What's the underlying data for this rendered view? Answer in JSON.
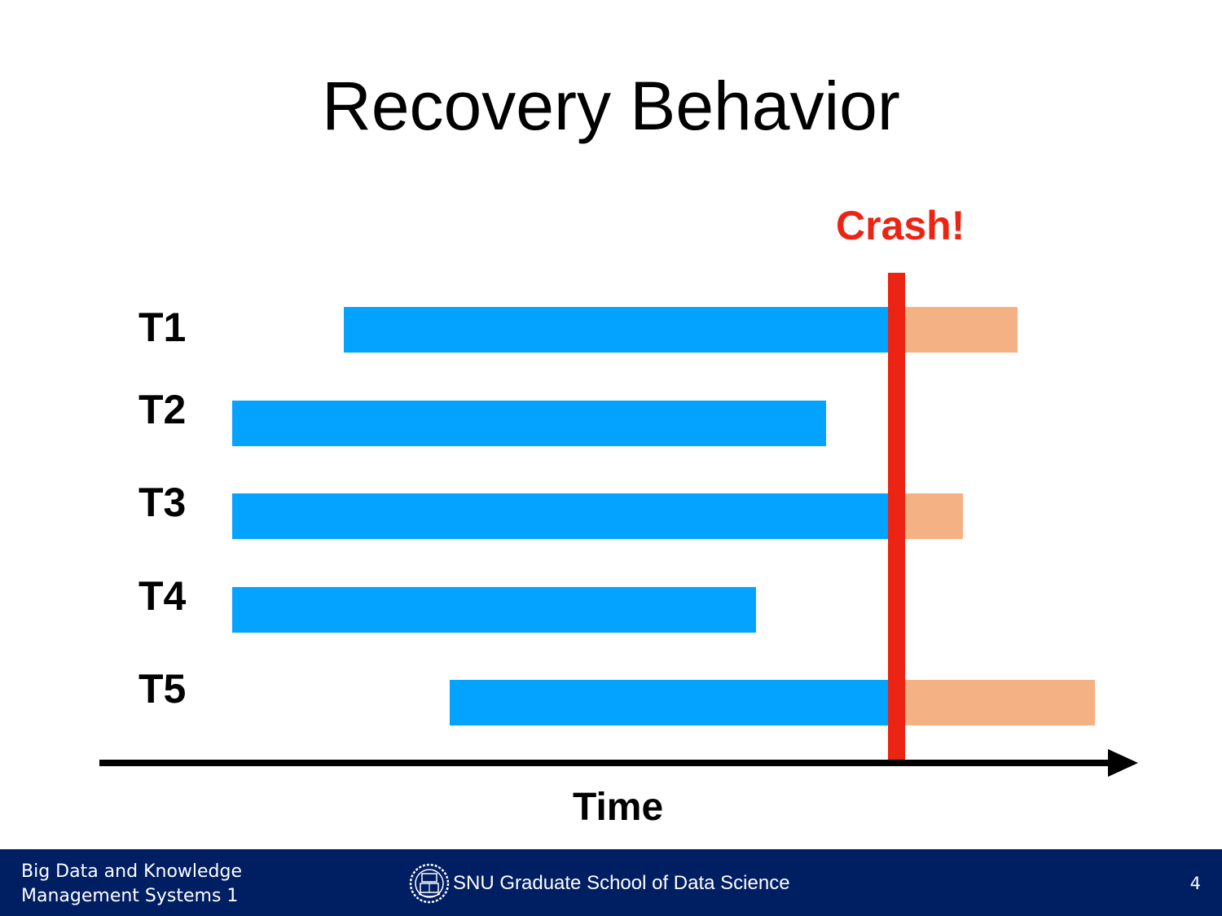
{
  "slide": {
    "title": "Recovery Behavior"
  },
  "diagram": {
    "crash_label": "Crash!",
    "axis_label": "Time",
    "crash_time": 10.9,
    "time_range": [
      1.22,
      13.97
    ],
    "colors": {
      "before_crash": "#03a3ff",
      "after_crash": "#f4b184",
      "crash": "#ec2413",
      "footer": "#001e62"
    },
    "transactions": [
      {
        "label": "T1",
        "start": 4.22,
        "end": 12.49
      },
      {
        "label": "T2",
        "start": 2.85,
        "end": 10.14
      },
      {
        "label": "T3",
        "start": 2.85,
        "end": 11.82
      },
      {
        "label": "T4",
        "start": 2.85,
        "end": 9.28
      },
      {
        "label": "T5",
        "start": 5.52,
        "end": 13.44
      }
    ]
  },
  "footer": {
    "course_line1": "Big Data and Knowledge",
    "course_line2": "Management Systems 1",
    "school": "SNU Graduate School of Data Science",
    "seal_icon": "university-seal-icon",
    "page_number": "4"
  }
}
